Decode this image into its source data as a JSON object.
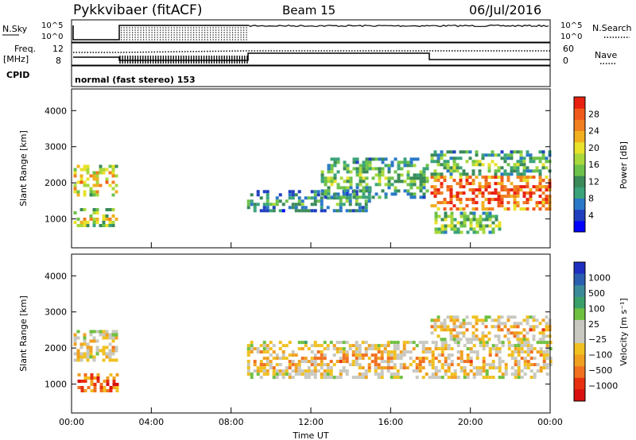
{
  "header": {
    "station": "Pykkvibaer (fitACF)",
    "beam": "Beam 15",
    "date": "06/Jul/2016"
  },
  "params": {
    "nsky_label": "N.Sky",
    "nsky_ticks": [
      "10^5",
      "10^0"
    ],
    "nsearch_label": "N.Search",
    "nsearch_ticks": [
      "10^5",
      "10^0"
    ],
    "freq_label_1": "Freq.",
    "freq_label_2": "[MHz]",
    "freq_ticks": [
      "12",
      "8"
    ],
    "nave_label": "Nave",
    "nave_ticks": [
      "60",
      "0"
    ],
    "cpid_label": "CPID",
    "cpid_text": "normal (fast stereo) 153"
  },
  "colors": {
    "power": [
      "#0000ff",
      "#1f3fbf",
      "#2a78c8",
      "#3aa37a",
      "#3a8a5a",
      "#6cc24a",
      "#a8d83c",
      "#e8e22a",
      "#f0b020",
      "#f08020",
      "#f05a1a",
      "#e82010"
    ],
    "velocity": [
      "#1f2fbf",
      "#2a5fb0",
      "#3a8a9a",
      "#3aa06a",
      "#6ec040",
      "#c8c8c0",
      "#c8c8c0",
      "#f0c020",
      "#f0a020",
      "#f07020",
      "#e83010",
      "#d81010"
    ]
  },
  "chart_data": [
    {
      "type": "heatmap",
      "name": "power",
      "ylabel": "Slant Range [km]",
      "y_ticks": [
        1000,
        2000,
        3000,
        4000
      ],
      "ylim": [
        200,
        4600
      ],
      "xlim": [
        0,
        24
      ],
      "colorbar": {
        "label": "Power [dB]",
        "ticks": [
          "4",
          "8",
          "12",
          "16",
          "20",
          "24",
          "28"
        ],
        "range": [
          0,
          32
        ]
      },
      "regions": [
        {
          "t0": 0.1,
          "t1": 2.3,
          "r0": 1700,
          "r1": 2500,
          "level": 0.55
        },
        {
          "t0": 0.1,
          "t1": 2.3,
          "r0": 800,
          "r1": 1300,
          "level": 0.45
        },
        {
          "t0": 8.8,
          "t1": 15.0,
          "r0": 1200,
          "r1": 1800,
          "level": 0.2
        },
        {
          "t0": 12.5,
          "t1": 17.8,
          "r0": 1600,
          "r1": 2700,
          "level": 0.3
        },
        {
          "t0": 18.0,
          "t1": 24.0,
          "r0": 1300,
          "r1": 2200,
          "level": 0.75
        },
        {
          "t0": 18.0,
          "t1": 24.0,
          "r0": 2200,
          "r1": 2900,
          "level": 0.3
        },
        {
          "t0": 18.2,
          "t1": 21.5,
          "r0": 600,
          "r1": 1200,
          "level": 0.35
        }
      ]
    },
    {
      "type": "heatmap",
      "name": "velocity",
      "ylabel": "Slant Range [km]",
      "y_ticks": [
        1000,
        2000,
        3000,
        4000
      ],
      "ylim": [
        200,
        4600
      ],
      "xlim": [
        0,
        24
      ],
      "xlabel": "Time UT",
      "x_ticks": [
        "00:00",
        "04:00",
        "08:00",
        "12:00",
        "16:00",
        "20:00",
        "00:00"
      ],
      "x_tick_values": [
        0,
        4,
        8,
        12,
        16,
        20,
        24
      ],
      "colorbar": {
        "label": "Velocity [m s⁻¹]",
        "ticks": [
          "1000",
          "500",
          "100",
          "25",
          "−25",
          "−100",
          "−500",
          "−1000"
        ]
      },
      "regions": [
        {
          "t0": 0.1,
          "t1": 2.3,
          "r0": 1700,
          "r1": 2500,
          "level": 0.5
        },
        {
          "t0": 0.3,
          "t1": 2.3,
          "r0": 800,
          "r1": 1300,
          "level": 0.7
        },
        {
          "t0": 8.8,
          "t1": 24.0,
          "r0": 1200,
          "r1": 2200,
          "level": 0.5
        },
        {
          "t0": 18.0,
          "t1": 24.0,
          "r0": 2200,
          "r1": 2900,
          "level": 0.5
        }
      ]
    }
  ]
}
